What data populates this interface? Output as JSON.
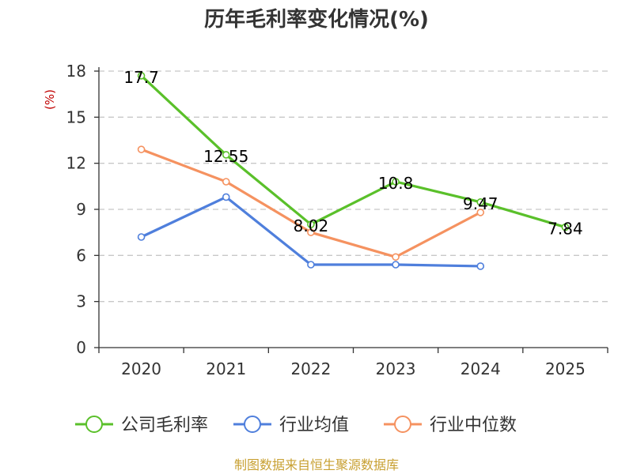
{
  "chart_data": {
    "type": "line",
    "title": "历年毛利率变化情况(%)",
    "unit_label": "(%)",
    "categories": [
      "2020",
      "2021",
      "2022",
      "2023",
      "2024",
      "2025"
    ],
    "ylim": [
      0,
      18
    ],
    "yticks": [
      0,
      3,
      6,
      9,
      12,
      15,
      18
    ],
    "grid": true,
    "legend_position": "bottom",
    "series": [
      {
        "name": "公司毛利率",
        "color": "#5ac02a",
        "values": [
          17.7,
          12.55,
          8.02,
          10.8,
          9.47,
          7.84
        ],
        "labels": [
          "17.7",
          "12.55",
          "8.02",
          "10.8",
          "9.47",
          "7.84"
        ]
      },
      {
        "name": "行业均值",
        "color": "#4f7fdc",
        "values": [
          7.2,
          9.8,
          5.4,
          5.4,
          5.3,
          null
        ]
      },
      {
        "name": "行业中位数",
        "color": "#f59260",
        "values": [
          12.9,
          10.8,
          7.5,
          5.9,
          8.8,
          null
        ]
      }
    ],
    "source": "制图数据来自恒生聚源数据库"
  }
}
